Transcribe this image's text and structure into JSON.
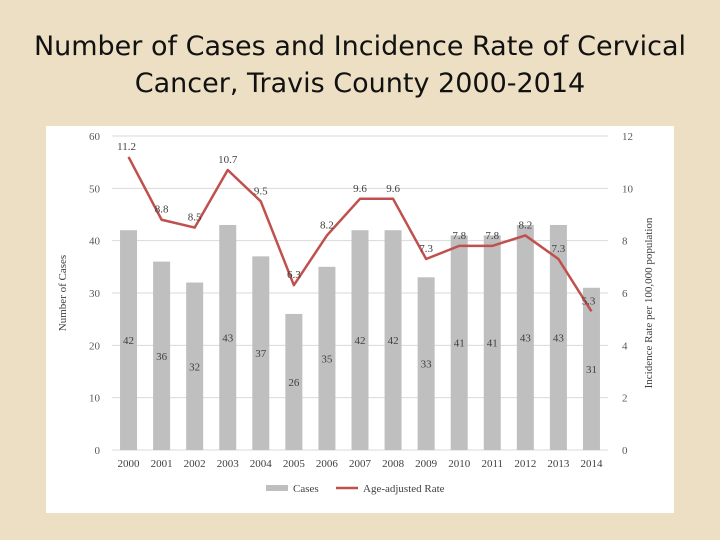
{
  "slide": {
    "title_line1": "Number of Cases and Incidence Rate of Cervical",
    "title_line2": "Cancer, Travis County 2000-2014"
  },
  "chart_data": {
    "type": "bar",
    "categories": [
      "2000",
      "2001",
      "2002",
      "2003",
      "2004",
      "2005",
      "2006",
      "2007",
      "2008",
      "2009",
      "2010",
      "2011",
      "2012",
      "2013",
      "2014"
    ],
    "series": [
      {
        "name": "Cases",
        "type": "bar",
        "axis": "left",
        "color": "#bfbfbf",
        "values": [
          42,
          36,
          32,
          43,
          37,
          26,
          35,
          42,
          42,
          33,
          41,
          41,
          43,
          43,
          31
        ]
      },
      {
        "name": "Age-adjusted Rate",
        "type": "line",
        "axis": "right",
        "color": "#c0504d",
        "values": [
          11.2,
          8.8,
          8.5,
          10.7,
          9.5,
          6.3,
          8.2,
          9.6,
          9.6,
          7.3,
          7.8,
          7.8,
          8.2,
          7.3,
          5.3
        ]
      }
    ],
    "ylabel": "Number of Cases",
    "ylabel_right": "Incidence Rate per 100,000 population",
    "ylim": [
      0,
      60
    ],
    "ylim_right": [
      0,
      12
    ],
    "yticks": [
      "0",
      "10",
      "20",
      "30",
      "40",
      "50",
      "60"
    ],
    "yticks_right": [
      "0",
      "2",
      "4",
      "6",
      "8",
      "10",
      "12"
    ],
    "legend_position": "bottom",
    "grid": true
  }
}
